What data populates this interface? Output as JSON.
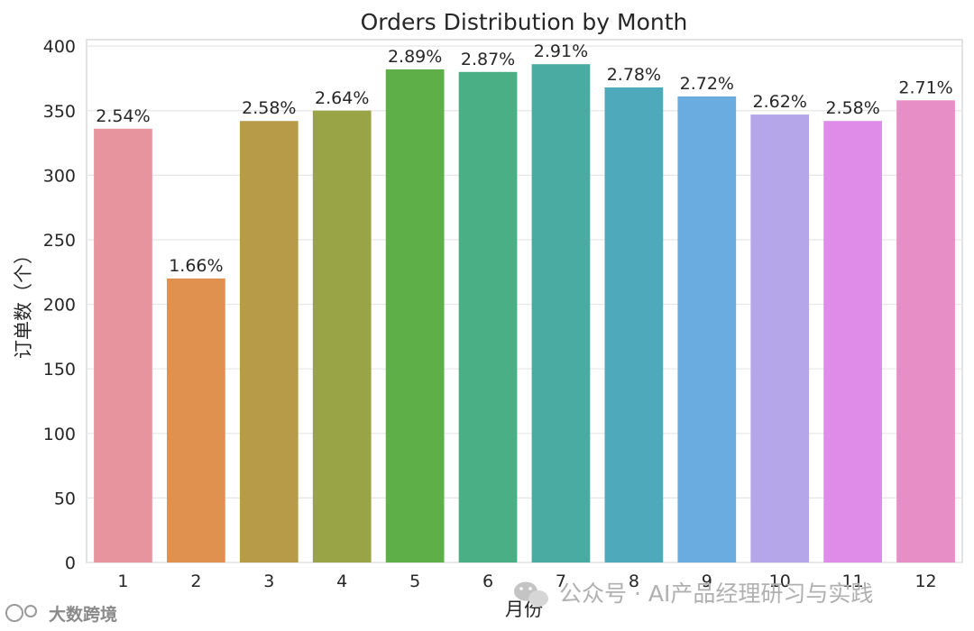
{
  "chart_data": {
    "type": "bar",
    "title": "Orders Distribution by Month",
    "xlabel": "月份",
    "ylabel": "订单数（个）",
    "categories": [
      "1",
      "2",
      "3",
      "4",
      "5",
      "6",
      "7",
      "8",
      "9",
      "10",
      "11",
      "12"
    ],
    "values": [
      336,
      220,
      342,
      350,
      382,
      380,
      386,
      368,
      361,
      347,
      342,
      358
    ],
    "data_labels": [
      "2.54%",
      "1.66%",
      "2.58%",
      "2.64%",
      "2.89%",
      "2.87%",
      "2.91%",
      "2.78%",
      "2.72%",
      "2.62%",
      "2.58%",
      "2.71%"
    ],
    "colors": [
      "#e8949e",
      "#e0904f",
      "#b89b48",
      "#99a446",
      "#5eaf48",
      "#4baf85",
      "#4aaba3",
      "#4ea9bb",
      "#6aabe0",
      "#b4a6e9",
      "#df8ce8",
      "#e88ec6"
    ],
    "yticks": [
      0,
      50,
      100,
      150,
      200,
      250,
      300,
      350,
      400
    ],
    "ylim": [
      0,
      405
    ],
    "grid": true
  },
  "watermarks": {
    "right_text": "公众号 · AI产品经理研习与实践",
    "left_text": "大数跨境"
  }
}
